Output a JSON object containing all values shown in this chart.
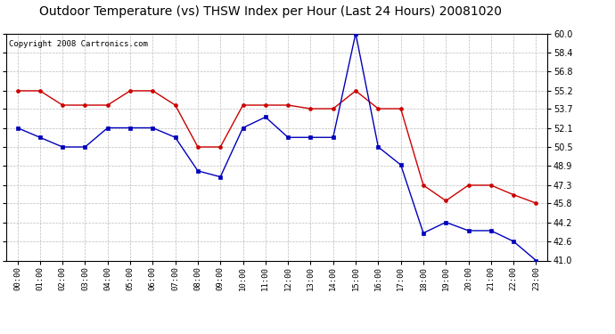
{
  "title": "Outdoor Temperature (vs) THSW Index per Hour (Last 24 Hours) 20081020",
  "copyright": "Copyright 2008 Cartronics.com",
  "hours": [
    0,
    1,
    2,
    3,
    4,
    5,
    6,
    7,
    8,
    9,
    10,
    11,
    12,
    13,
    14,
    15,
    16,
    17,
    18,
    19,
    20,
    21,
    22,
    23
  ],
  "hour_labels": [
    "00:00",
    "01:00",
    "02:00",
    "03:00",
    "04:00",
    "05:00",
    "06:00",
    "07:00",
    "08:00",
    "09:00",
    "10:00",
    "11:00",
    "12:00",
    "13:00",
    "14:00",
    "15:00",
    "16:00",
    "17:00",
    "18:00",
    "19:00",
    "20:00",
    "21:00",
    "22:00",
    "23:00"
  ],
  "red_data": [
    55.2,
    55.2,
    54.0,
    54.0,
    54.0,
    55.2,
    55.2,
    54.0,
    50.5,
    50.5,
    54.0,
    54.0,
    54.0,
    53.7,
    53.7,
    55.2,
    53.7,
    53.7,
    47.3,
    46.0,
    47.3,
    47.3,
    46.5,
    45.8
  ],
  "blue_data": [
    52.1,
    51.3,
    50.5,
    50.5,
    52.1,
    52.1,
    52.1,
    51.3,
    48.5,
    48.0,
    52.1,
    53.0,
    51.3,
    51.3,
    51.3,
    60.0,
    50.5,
    49.0,
    43.3,
    44.2,
    43.5,
    43.5,
    42.6,
    41.0
  ],
  "ylim": [
    41.0,
    60.0
  ],
  "yticks": [
    41.0,
    42.6,
    44.2,
    45.8,
    47.3,
    48.9,
    50.5,
    52.1,
    53.7,
    55.2,
    56.8,
    58.4,
    60.0
  ],
  "red_color": "#cc0000",
  "blue_color": "#0000bb",
  "bg_color": "#ffffff",
  "plot_bg": "#ffffff",
  "grid_color": "#bbbbbb",
  "title_fontsize": 10,
  "copyright_fontsize": 6.5
}
